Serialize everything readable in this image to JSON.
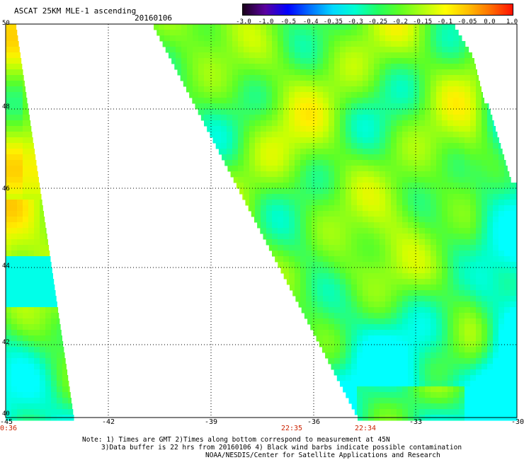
{
  "header": {
    "title": "ASCAT 25KM MLE-1 ascending",
    "date": "20160106"
  },
  "colorbar": {
    "labels": [
      "-3.0",
      "-1.0",
      "-0.5",
      "-0.4",
      "-0.35",
      "-0.3",
      "-0.25",
      "-0.2",
      "-0.15",
      "-0.1",
      "-0.05",
      "0.0",
      "1.0"
    ],
    "colors": [
      "#1a001a",
      "#5a00a0",
      "#0000ff",
      "#0070ff",
      "#00d8ff",
      "#00ffd0",
      "#20ff60",
      "#60ff20",
      "#b0ff10",
      "#ffff00",
      "#ffc000",
      "#ff7000",
      "#ff1000"
    ]
  },
  "map": {
    "lat_labels": [
      "50",
      "48",
      "46",
      "44",
      "42",
      "40"
    ],
    "lon_labels": [
      "-45",
      "-42",
      "-39",
      "-36",
      "-33",
      "-30"
    ],
    "time_labels": [
      "0:36",
      "22:35",
      "22:34"
    ]
  },
  "notes": {
    "line1": "Note: 1) Times are GMT 2)Times along bottom correspond to measurement at 45N",
    "line2": "3)Data buffer is 22 hrs from 20160106 4) Black wind barbs indicate possible contamination",
    "line3": "NOAA/NESDIS/Center for Satellite Applications and Research"
  }
}
